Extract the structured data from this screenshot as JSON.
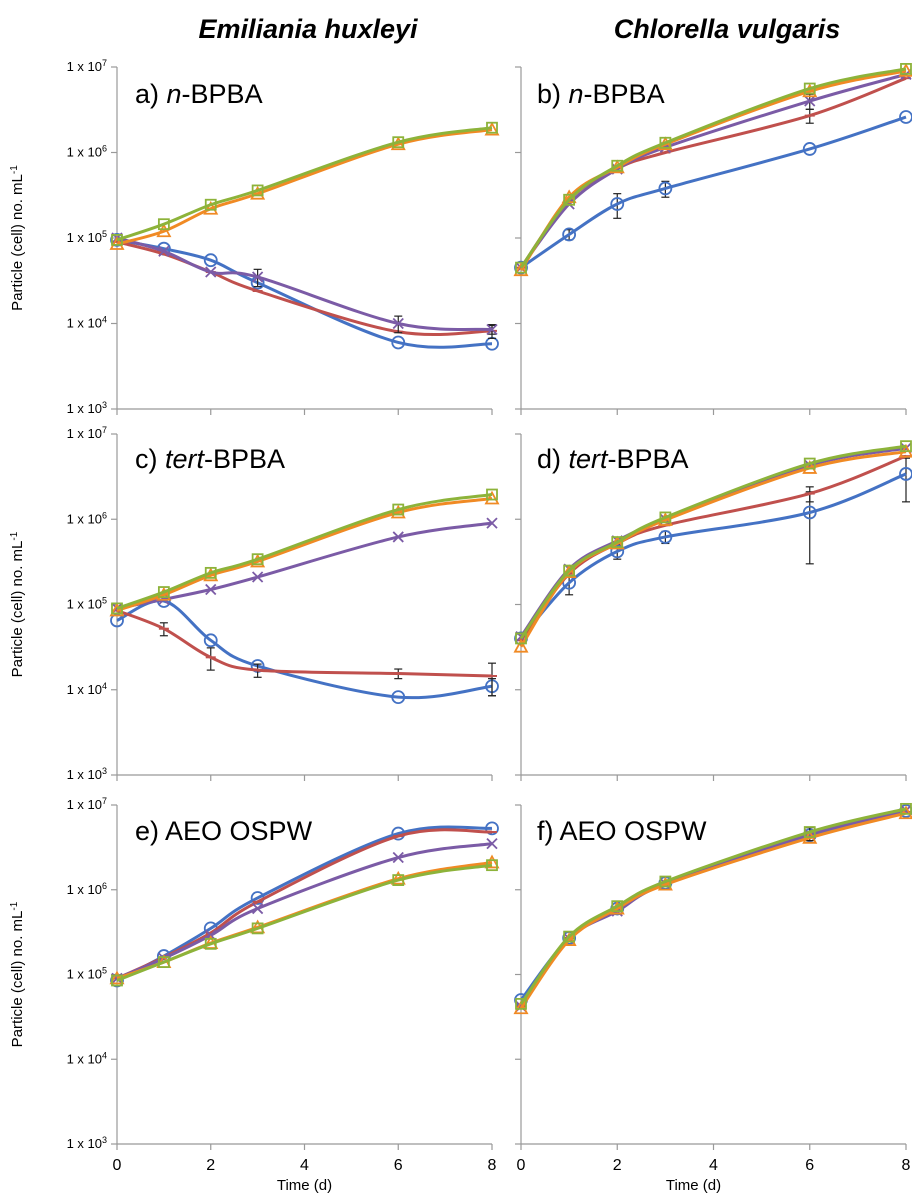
{
  "column_titles": [
    "Emiliania huxleyi",
    "Chlorella vulgaris"
  ],
  "colors": {
    "blue_circle": "#4472C4",
    "red_dash": "#C0504D",
    "purple_x": "#7B5BA6",
    "orange_triangle": "#F08A24",
    "green_square": "#8DB33A",
    "axis": "#999999"
  },
  "chart_data": [
    {
      "panel": "a",
      "label_prefix": "a) ",
      "label_italic": "n",
      "label_suffix": "-BPBA",
      "type": "line",
      "yscale": "log",
      "ylim": [
        1000,
        10000000
      ],
      "xlim": [
        0,
        8
      ],
      "ylabel": "Particle (cell) no. mL-1",
      "yticklabels": [
        "1 x 10^3",
        "1 x 10^4",
        "1 x 10^5",
        "1 x 10^6",
        "1 x 10^7"
      ],
      "series": [
        {
          "marker": "circle",
          "color": "#4472C4",
          "x": [
            0,
            1,
            2,
            3,
            6,
            8
          ],
          "y": [
            95000,
            75000,
            55000,
            30000,
            6000,
            5800
          ],
          "err": [
            0,
            0,
            0,
            0,
            0,
            0
          ]
        },
        {
          "marker": "dash",
          "color": "#C0504D",
          "x": [
            0,
            1,
            2,
            3,
            6,
            8
          ],
          "y": [
            90000,
            65000,
            40000,
            24000,
            8000,
            8200
          ],
          "err": [
            0,
            0,
            0,
            0,
            0,
            1500
          ]
        },
        {
          "marker": "x",
          "color": "#7B5BA6",
          "x": [
            0,
            1,
            2,
            3,
            6,
            8
          ],
          "y": [
            100000,
            70000,
            40000,
            35000,
            10000,
            8500
          ],
          "err": [
            0,
            0,
            0,
            8000,
            2200,
            1000
          ]
        },
        {
          "marker": "triangle",
          "color": "#F08A24",
          "x": [
            0,
            1,
            2,
            3,
            6,
            8
          ],
          "y": [
            85000,
            120000,
            220000,
            330000,
            1250000,
            1850000
          ],
          "err": [
            0,
            0,
            0,
            0,
            0,
            0
          ]
        },
        {
          "marker": "square",
          "color": "#8DB33A",
          "x": [
            0,
            1,
            2,
            3,
            6,
            8
          ],
          "y": [
            95000,
            145000,
            245000,
            360000,
            1320000,
            1950000
          ],
          "err": [
            0,
            0,
            0,
            0,
            0,
            0
          ]
        }
      ]
    },
    {
      "panel": "b",
      "label_prefix": "b) ",
      "label_italic": "n",
      "label_suffix": "-BPBA",
      "type": "line",
      "yscale": "log",
      "ylim": [
        1000,
        10000000
      ],
      "xlim": [
        0,
        8
      ],
      "series": [
        {
          "marker": "circle",
          "color": "#4472C4",
          "x": [
            0,
            1,
            2,
            3,
            6,
            8
          ],
          "y": [
            45000,
            110000,
            250000,
            380000,
            1100000,
            2600000
          ],
          "err": [
            0,
            15000,
            80000,
            80000,
            0,
            0
          ]
        },
        {
          "marker": "dash",
          "color": "#C0504D",
          "x": [
            0,
            1,
            2,
            3,
            6,
            8
          ],
          "y": [
            45000,
            280000,
            650000,
            1000000,
            2700000,
            7400000
          ],
          "err": [
            0,
            0,
            0,
            0,
            500000,
            0
          ]
        },
        {
          "marker": "x",
          "color": "#7B5BA6",
          "x": [
            0,
            1,
            2,
            3,
            6,
            8
          ],
          "y": [
            45000,
            250000,
            640000,
            1150000,
            4000000,
            8200000
          ],
          "err": [
            0,
            0,
            0,
            0,
            800000,
            0
          ]
        },
        {
          "marker": "triangle",
          "color": "#F08A24",
          "x": [
            0,
            1,
            2,
            3,
            6,
            8
          ],
          "y": [
            42000,
            300000,
            670000,
            1250000,
            5200000,
            9000000
          ],
          "err": [
            0,
            0,
            0,
            0,
            0,
            0
          ]
        },
        {
          "marker": "square",
          "color": "#8DB33A",
          "x": [
            0,
            1,
            2,
            3,
            6,
            8
          ],
          "y": [
            45000,
            280000,
            700000,
            1300000,
            5600000,
            9500000
          ],
          "err": [
            0,
            0,
            0,
            0,
            0,
            0
          ]
        }
      ]
    },
    {
      "panel": "c",
      "label_prefix": "c) ",
      "label_italic": "tert",
      "label_suffix": "-BPBA",
      "type": "line",
      "yscale": "log",
      "ylim": [
        1000,
        10000000
      ],
      "xlim": [
        0,
        8
      ],
      "ylabel": "Particle (cell) no. mL-1",
      "yticklabels": [
        "1 x 10^3",
        "1 x 10^4",
        "1 x 10^5",
        "1 x 10^6",
        "1 x 10^7"
      ],
      "series": [
        {
          "marker": "circle",
          "color": "#4472C4",
          "x": [
            0,
            1,
            2,
            3,
            6,
            8
          ],
          "y": [
            65000,
            110000,
            38000,
            19000,
            8200,
            11000
          ],
          "err": [
            0,
            0,
            0,
            0,
            0,
            2500
          ]
        },
        {
          "marker": "dash",
          "color": "#C0504D",
          "x": [
            0,
            1,
            2,
            3,
            6,
            8
          ],
          "y": [
            85000,
            52000,
            24000,
            17000,
            15500,
            14500
          ],
          "err": [
            0,
            9000,
            7000,
            3000,
            2000,
            6000
          ]
        },
        {
          "marker": "x",
          "color": "#7B5BA6",
          "x": [
            0,
            1,
            2,
            3,
            6,
            8
          ],
          "y": [
            90000,
            115000,
            150000,
            210000,
            620000,
            900000
          ],
          "err": [
            0,
            0,
            0,
            0,
            0,
            0
          ]
        },
        {
          "marker": "triangle",
          "color": "#F08A24",
          "x": [
            0,
            1,
            2,
            3,
            6,
            8
          ],
          "y": [
            85000,
            130000,
            220000,
            320000,
            1200000,
            1750000
          ],
          "err": [
            0,
            0,
            0,
            0,
            0,
            0
          ]
        },
        {
          "marker": "square",
          "color": "#8DB33A",
          "x": [
            0,
            1,
            2,
            3,
            6,
            8
          ],
          "y": [
            90000,
            140000,
            235000,
            340000,
            1300000,
            1950000
          ],
          "err": [
            0,
            0,
            0,
            0,
            0,
            0
          ]
        }
      ]
    },
    {
      "panel": "d",
      "label_prefix": "d) ",
      "label_italic": "tert",
      "label_suffix": "-BPBA",
      "type": "line",
      "yscale": "log",
      "ylim": [
        1000,
        10000000
      ],
      "xlim": [
        0,
        8
      ],
      "series": [
        {
          "marker": "circle",
          "color": "#4472C4",
          "x": [
            0,
            1,
            2,
            3,
            6,
            8
          ],
          "y": [
            40000,
            180000,
            420000,
            620000,
            1200000,
            3400000
          ],
          "err": [
            0,
            50000,
            80000,
            100000,
            900000,
            1800000
          ]
        },
        {
          "marker": "dash",
          "color": "#C0504D",
          "x": [
            0,
            1,
            2,
            3,
            6,
            8
          ],
          "y": [
            38000,
            230000,
            520000,
            850000,
            2000000,
            5500000
          ],
          "err": [
            0,
            0,
            0,
            0,
            400000,
            0
          ]
        },
        {
          "marker": "x",
          "color": "#7B5BA6",
          "x": [
            0,
            1,
            2,
            3,
            6,
            8
          ],
          "y": [
            42000,
            260000,
            560000,
            1000000,
            4300000,
            6800000
          ],
          "err": [
            0,
            0,
            0,
            0,
            0,
            0
          ]
        },
        {
          "marker": "triangle",
          "color": "#F08A24",
          "x": [
            0,
            1,
            2,
            3,
            6,
            8
          ],
          "y": [
            32000,
            240000,
            520000,
            980000,
            4000000,
            6200000
          ],
          "err": [
            0,
            0,
            0,
            0,
            0,
            0
          ]
        },
        {
          "marker": "square",
          "color": "#8DB33A",
          "x": [
            0,
            1,
            2,
            3,
            6,
            8
          ],
          "y": [
            40000,
            250000,
            540000,
            1050000,
            4500000,
            7200000
          ],
          "err": [
            0,
            0,
            0,
            0,
            0,
            0
          ]
        }
      ]
    },
    {
      "panel": "e",
      "label_prefix": "e) ",
      "label_italic": "",
      "label_suffix": "AEO OSPW",
      "type": "line",
      "yscale": "log",
      "ylim": [
        1000,
        10000000
      ],
      "xlim": [
        0,
        8
      ],
      "ylabel": "Particle (cell) no. mL-1",
      "yticklabels": [
        "1 x 10^3",
        "1 x 10^4",
        "1 x 10^5",
        "1 x 10^6",
        "1 x 10^7"
      ],
      "series": [
        {
          "marker": "circle",
          "color": "#4472C4",
          "x": [
            0,
            1,
            2,
            3,
            6,
            8
          ],
          "y": [
            85000,
            165000,
            350000,
            800000,
            4600000,
            5300000
          ],
          "err": [
            0,
            0,
            0,
            0,
            0,
            0
          ]
        },
        {
          "marker": "dash",
          "color": "#C0504D",
          "x": [
            0,
            1,
            2,
            3,
            6,
            8
          ],
          "y": [
            90000,
            160000,
            310000,
            720000,
            4300000,
            4800000
          ],
          "err": [
            0,
            0,
            0,
            0,
            0,
            0
          ]
        },
        {
          "marker": "x",
          "color": "#7B5BA6",
          "x": [
            0,
            1,
            2,
            3,
            6,
            8
          ],
          "y": [
            90000,
            155000,
            290000,
            600000,
            2400000,
            3500000
          ],
          "err": [
            0,
            0,
            0,
            0,
            0,
            0
          ]
        },
        {
          "marker": "triangle",
          "color": "#F08A24",
          "x": [
            0,
            1,
            2,
            3,
            6,
            8
          ],
          "y": [
            90000,
            140000,
            235000,
            360000,
            1350000,
            2100000
          ],
          "err": [
            0,
            0,
            0,
            0,
            0,
            0
          ]
        },
        {
          "marker": "square",
          "color": "#8DB33A",
          "x": [
            0,
            1,
            2,
            3,
            6,
            8
          ],
          "y": [
            85000,
            140000,
            230000,
            350000,
            1300000,
            1950000
          ],
          "err": [
            0,
            0,
            0,
            0,
            0,
            0
          ]
        }
      ]
    },
    {
      "panel": "f",
      "label_prefix": "f) ",
      "label_italic": "",
      "label_suffix": "AEO OSPW",
      "type": "line",
      "yscale": "log",
      "ylim": [
        1000,
        10000000
      ],
      "xlim": [
        0,
        8
      ],
      "series": [
        {
          "marker": "circle",
          "color": "#4472C4",
          "x": [
            0,
            1,
            2,
            3,
            6,
            8
          ],
          "y": [
            50000,
            270000,
            600000,
            1200000,
            4400000,
            8500000
          ],
          "err": [
            0,
            0,
            0,
            0,
            0,
            0
          ]
        },
        {
          "marker": "dash",
          "color": "#C0504D",
          "x": [
            0,
            1,
            2,
            3,
            6,
            8
          ],
          "y": [
            42000,
            270000,
            580000,
            1200000,
            4600000,
            8300000
          ],
          "err": [
            0,
            0,
            0,
            0,
            800000,
            0
          ]
        },
        {
          "marker": "x",
          "color": "#7B5BA6",
          "x": [
            0,
            1,
            2,
            3,
            6,
            8
          ],
          "y": [
            42000,
            265000,
            560000,
            1180000,
            4500000,
            8600000
          ],
          "err": [
            0,
            0,
            0,
            0,
            0,
            0
          ]
        },
        {
          "marker": "triangle",
          "color": "#F08A24",
          "x": [
            0,
            1,
            2,
            3,
            6,
            8
          ],
          "y": [
            40000,
            255000,
            600000,
            1150000,
            4100000,
            8000000
          ],
          "err": [
            0,
            0,
            0,
            0,
            0,
            0
          ]
        },
        {
          "marker": "square",
          "color": "#8DB33A",
          "x": [
            0,
            1,
            2,
            3,
            6,
            8
          ],
          "y": [
            45000,
            280000,
            640000,
            1250000,
            4800000,
            9000000
          ],
          "err": [
            0,
            0,
            0,
            0,
            0,
            0
          ]
        }
      ]
    }
  ],
  "xlabel": "Time (d)",
  "xticklabels": [
    "0",
    "2",
    "4",
    "6",
    "8"
  ]
}
